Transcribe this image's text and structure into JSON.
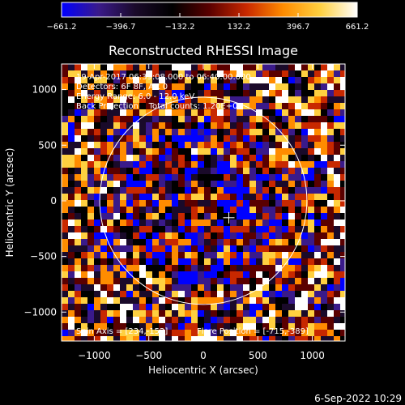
{
  "chart_data": {
    "type": "heatmap",
    "title": "Reconstructed RHESSI Image",
    "xlabel": "Heliocentric X (arcsec)",
    "ylabel": "Heliocentric Y (arcsec)",
    "xlim": [
      -1300,
      1300
    ],
    "ylim": [
      -1260,
      1230
    ],
    "xticks": [
      -1000,
      -500,
      0,
      500,
      1000
    ],
    "yticks": [
      -1000,
      -500,
      0,
      500,
      1000
    ],
    "xtick_labels": [
      "−1000",
      "−500",
      "0",
      "500",
      "1000"
    ],
    "ytick_labels": [
      "−1000",
      "−500",
      "0",
      "500",
      "1000"
    ],
    "colorbar": {
      "min": -661.2,
      "max": 661.2,
      "ticks": [
        -661.2,
        -396.7,
        -132.2,
        132.2,
        396.7,
        661.2
      ],
      "tick_labels": [
        "−661.2",
        "−396.7",
        "−132.2",
        "132.2",
        "396.7",
        "661.2"
      ],
      "colormap": [
        "#0000ff",
        "#3a1a8a",
        "#1a0a2a",
        "#000000",
        "#5a0000",
        "#c82800",
        "#ff8c00",
        "#ffd040",
        "#ffffff"
      ]
    },
    "solar_limb": {
      "center": [
        0,
        0
      ],
      "radius": 950
    },
    "marker": {
      "x": 234,
      "y": -152
    },
    "annotations": [
      "19-Apr-2017 06:39:08.000 to 06:40:00.000",
      "Detectors: 6F 8F, Att 0",
      "Energy Range: 6.0 - 12.0 keV",
      "Back Projection    Total counts: 1.20E+03"
    ],
    "footer_left": "Spin Axis = [234,-152]",
    "footer_right": "Flare Position = [-715,-389]",
    "timestamp": "6-Sep-2022 10:29"
  }
}
